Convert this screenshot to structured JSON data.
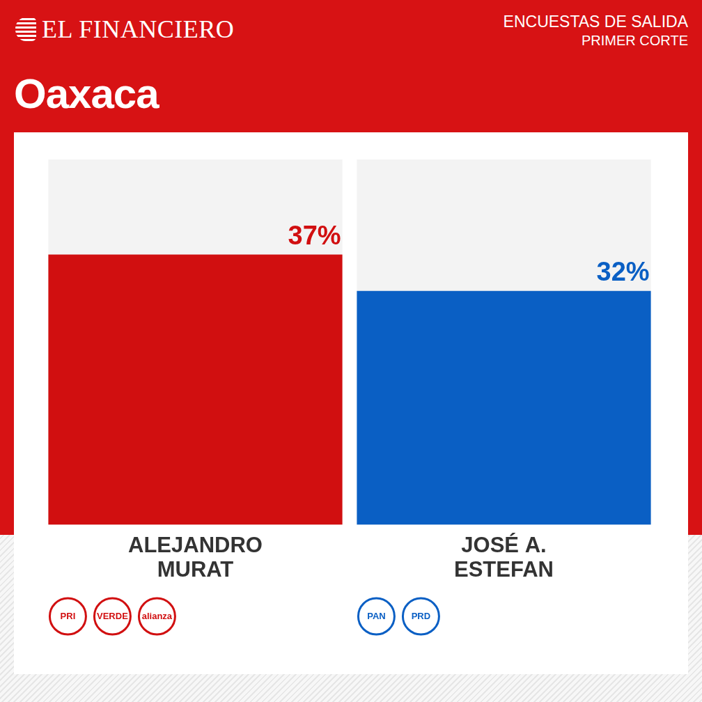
{
  "header": {
    "brand": "EL FINANCIERO",
    "kicker": "ENCUESTAS DE SALIDA",
    "subkicker": "PRIMER CORTE"
  },
  "chart_data": {
    "type": "bar",
    "title": "Oaxaca",
    "categories": [
      "ALEJANDRO MURAT",
      "JOSÉ A. ESTEFAN"
    ],
    "values": [
      37,
      32
    ],
    "value_labels": [
      "37%",
      "32%"
    ],
    "colors": [
      "#d10f10",
      "#0a5fc4"
    ],
    "parties": [
      [
        "PRI",
        "VERDE",
        "alianza"
      ],
      [
        "PAN",
        "PRD"
      ]
    ],
    "ylim": [
      0,
      50
    ],
    "yticks": [
      0,
      50
    ],
    "grid": false,
    "data_labels": true,
    "tick_labels": "x"
  }
}
